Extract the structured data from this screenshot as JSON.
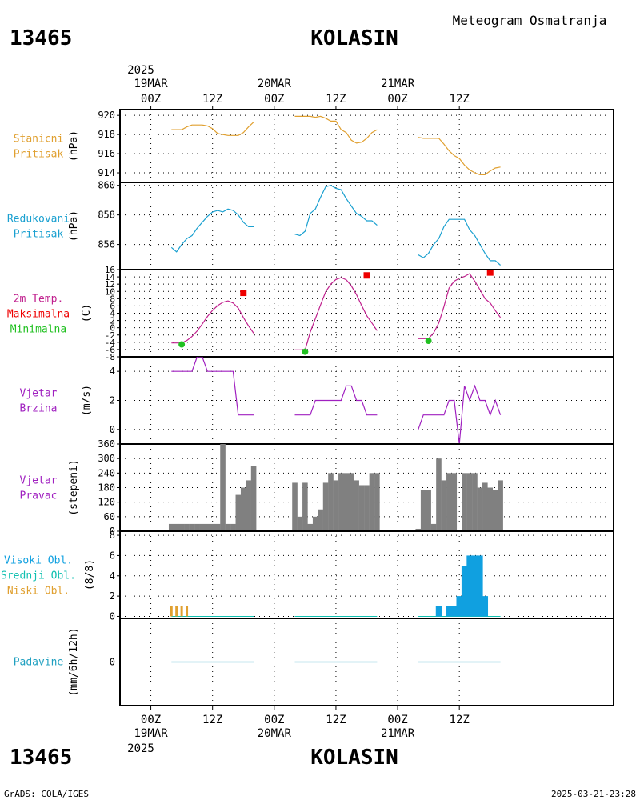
{
  "header": {
    "station_id": "13465",
    "station_name": "KOLASIN",
    "product_title": "Meteogram Osmatranja",
    "year": "2025"
  },
  "footer": {
    "station_id": "13465",
    "station_name": "KOLASIN",
    "credit": "GrADS: COLA/IGES",
    "timestamp": "2025-03-21-23:28"
  },
  "time_axis": {
    "unit": "hours from 2025-03-19 00Z",
    "range": [
      -6,
      90
    ],
    "ticks": [
      {
        "t": 0,
        "label": "00Z",
        "date": "19MAR"
      },
      {
        "t": 12,
        "label": "12Z",
        "date": ""
      },
      {
        "t": 24,
        "label": "00Z",
        "date": "20MAR"
      },
      {
        "t": 36,
        "label": "12Z",
        "date": ""
      },
      {
        "t": 48,
        "label": "00Z",
        "date": "21MAR"
      },
      {
        "t": 60,
        "label": "12Z",
        "date": ""
      }
    ],
    "top_year_label": "2025",
    "bottom_year_label": "2025"
  },
  "colors": {
    "station_pressure": "#e0a030",
    "reduced_pressure": "#1aa0d0",
    "temperature": "#c0208e",
    "temp_max": "#ee0000",
    "temp_min": "#20c020",
    "wind_speed": "#a020c0",
    "wind_dir_bar": "#808080",
    "wind_dir_base": "#c04040",
    "cloud_high": "#10a0e0",
    "cloud_mid": "#10c0b0",
    "cloud_low": "#e0a030",
    "precip": "#20a0c0",
    "grid": "#000000"
  },
  "chart_data": [
    {
      "type": "line",
      "panel": "station-pressure",
      "labels": [
        "Stanicni",
        "Pritisak"
      ],
      "ylabel": "(hPa)",
      "ylim": [
        913,
        920.6
      ],
      "yticks": [
        914,
        916,
        918,
        920
      ],
      "series": [
        {
          "segments": [
            {
              "x": [
                4,
                5,
                6,
                7,
                8,
                9,
                10,
                11,
                12,
                13,
                14,
                15,
                16,
                17,
                18,
                19,
                20
              ],
              "y": [
                918.5,
                918.5,
                918.5,
                918.8,
                919.0,
                919.0,
                919.0,
                918.9,
                918.6,
                918.1,
                918.0,
                917.9,
                917.9,
                917.9,
                918.2,
                918.8,
                919.3
              ]
            },
            {
              "x": [
                28,
                29,
                30,
                31,
                32,
                33,
                34,
                35,
                36,
                37,
                38,
                39,
                40,
                41,
                42,
                43,
                44
              ],
              "y": [
                919.9,
                919.9,
                919.9,
                919.9,
                919.8,
                919.9,
                919.7,
                919.4,
                919.4,
                918.5,
                918.2,
                917.4,
                917.1,
                917.2,
                917.6,
                918.2,
                918.5
              ]
            },
            {
              "x": [
                52,
                53,
                54,
                55,
                56,
                57,
                58,
                59,
                60,
                61,
                62,
                63,
                64,
                65,
                66,
                67,
                68
              ],
              "y": [
                917.7,
                917.6,
                917.6,
                917.6,
                917.6,
                917.0,
                916.3,
                915.8,
                915.5,
                914.8,
                914.3,
                914.0,
                913.8,
                913.8,
                914.2,
                914.5,
                914.6
              ]
            }
          ]
        }
      ]
    },
    {
      "type": "line",
      "panel": "reduced-pressure",
      "labels": [
        "Redukovani",
        "Pritisak"
      ],
      "ylabel": "(hPa)",
      "ylim": [
        854.3,
        860.2
      ],
      "yticks": [
        856,
        858,
        860
      ],
      "series": [
        {
          "segments": [
            {
              "x": [
                4,
                5,
                6,
                7,
                8,
                9,
                10,
                11,
                12,
                13,
                14,
                15,
                16,
                17,
                18,
                19,
                20
              ],
              "y": [
                855.8,
                855.5,
                856.0,
                856.4,
                856.6,
                857.1,
                857.5,
                857.9,
                858.2,
                858.3,
                858.2,
                858.4,
                858.3,
                858.0,
                857.5,
                857.2,
                857.2
              ]
            },
            {
              "x": [
                28,
                29,
                30,
                31,
                32,
                33,
                34,
                35,
                36,
                37,
                38,
                39,
                40,
                41,
                42,
                43,
                44
              ],
              "y": [
                856.7,
                856.6,
                856.9,
                858.1,
                858.4,
                859.2,
                859.9,
                860.0,
                859.8,
                859.7,
                859.1,
                858.6,
                858.1,
                857.9,
                857.6,
                857.6,
                857.3
              ]
            },
            {
              "x": [
                52,
                53,
                54,
                55,
                56,
                57,
                58,
                59,
                60,
                61,
                62,
                63,
                64,
                65,
                66,
                67,
                68
              ],
              "y": [
                855.3,
                855.1,
                855.4,
                856.0,
                856.4,
                857.2,
                857.7,
                857.7,
                857.7,
                857.7,
                857.0,
                856.6,
                856.0,
                855.4,
                854.9,
                854.9,
                854.6
              ]
            }
          ]
        }
      ]
    },
    {
      "type": "line",
      "panel": "temperature",
      "labels": [
        "2m Temp.",
        "Maksimalna",
        "Minimalna"
      ],
      "ylabel": "(C)",
      "ylim": [
        -8,
        16
      ],
      "yticks": [
        -8,
        -6,
        -4,
        -2,
        0,
        2,
        4,
        6,
        8,
        10,
        12,
        14,
        16
      ],
      "series": [
        {
          "name": "2m Temp.",
          "segments": [
            {
              "x": [
                4,
                5,
                6,
                7,
                8,
                9,
                10,
                11,
                12,
                13,
                14,
                15,
                16,
                17,
                18,
                19,
                20
              ],
              "y": [
                -4.2,
                -4.2,
                -4.2,
                -3.5,
                -2.4,
                -0.9,
                1.0,
                3.1,
                4.8,
                6.1,
                7.0,
                7.4,
                6.8,
                5.4,
                2.8,
                0.5,
                -1.5
              ]
            },
            {
              "x": [
                28,
                29,
                30,
                31,
                32,
                33,
                34,
                35,
                36,
                37,
                38,
                39,
                40,
                41,
                42,
                43,
                44
              ],
              "y": [
                -6.1,
                -6.1,
                -6.1,
                -1.2,
                2.5,
                6.3,
                9.9,
                12.0,
                13.3,
                13.8,
                13.2,
                11.5,
                9.1,
                6.1,
                3.3,
                1.3,
                -0.8
              ]
            },
            {
              "x": [
                52,
                53,
                54,
                55,
                56,
                57,
                58,
                59,
                60,
                61,
                62,
                63,
                64,
                65,
                66,
                67,
                68
              ],
              "y": [
                -3.0,
                -3.0,
                -3.0,
                -1.4,
                1.3,
                5.8,
                10.9,
                12.8,
                13.6,
                14.1,
                14.9,
                12.8,
                10.5,
                8.0,
                6.8,
                4.7,
                2.8
              ]
            }
          ]
        },
        {
          "name": "Maksimalna",
          "points": [
            {
              "x": 18,
              "y": 9.6
            },
            {
              "x": 42,
              "y": 14.4
            },
            {
              "x": 66,
              "y": 15.2
            }
          ]
        },
        {
          "name": "Minimalna",
          "points": [
            {
              "x": 6,
              "y": -4.6
            },
            {
              "x": 30,
              "y": -6.6
            },
            {
              "x": 54,
              "y": -3.6
            }
          ]
        }
      ]
    },
    {
      "type": "line",
      "panel": "wind-speed",
      "labels": [
        "Vjetar",
        "Brzina"
      ],
      "ylabel": "(m/s)",
      "ylim": [
        -1,
        5
      ],
      "yticks": [
        0,
        2,
        4
      ],
      "series": [
        {
          "segments": [
            {
              "x": [
                4,
                5,
                6,
                7,
                8,
                9,
                10,
                11,
                12,
                13,
                14,
                15,
                16,
                17,
                18,
                19,
                20
              ],
              "y": [
                4,
                4,
                4,
                4,
                4,
                5,
                5,
                4,
                4,
                4,
                4,
                4,
                4,
                1,
                1,
                1,
                1
              ]
            },
            {
              "x": [
                28,
                29,
                30,
                31,
                32,
                33,
                34,
                35,
                36,
                37,
                38,
                39,
                40,
                41,
                42,
                43,
                44
              ],
              "y": [
                1,
                1,
                1,
                1,
                2,
                2,
                2,
                2,
                2,
                2,
                3,
                3,
                2,
                2,
                1,
                1,
                1
              ]
            },
            {
              "x": [
                52,
                53,
                54,
                55,
                56,
                57,
                58,
                59,
                60,
                61,
                62,
                63,
                64,
                65,
                66,
                67,
                68
              ],
              "y": [
                0,
                1,
                1,
                1,
                1,
                1,
                2,
                2,
                -1,
                3,
                2,
                3,
                2,
                2,
                1,
                2,
                1
              ]
            }
          ]
        }
      ]
    },
    {
      "type": "bar",
      "panel": "wind-direction",
      "labels": [
        "Vjetar",
        "Pravac"
      ],
      "ylabel": "(stepeni)",
      "ylim": [
        0,
        360
      ],
      "yticks": [
        0,
        60,
        120,
        180,
        240,
        300,
        360
      ],
      "series": [
        {
          "x": [
            4,
            5,
            6,
            7,
            8,
            9,
            10,
            11,
            12,
            13,
            14,
            15,
            16,
            17,
            18,
            19,
            20,
            28,
            29,
            30,
            31,
            32,
            33,
            34,
            35,
            36,
            37,
            38,
            39,
            40,
            41,
            42,
            43,
            44,
            52,
            53,
            54,
            55,
            56,
            57,
            58,
            59,
            60,
            61,
            62,
            63,
            64,
            65,
            66,
            67,
            68
          ],
          "values": [
            30,
            30,
            30,
            30,
            30,
            30,
            30,
            30,
            30,
            30,
            360,
            30,
            30,
            150,
            180,
            210,
            270,
            200,
            60,
            200,
            30,
            60,
            90,
            200,
            240,
            210,
            240,
            240,
            240,
            210,
            190,
            190,
            240,
            240,
            10,
            170,
            170,
            30,
            300,
            210,
            240,
            240,
            0,
            240,
            240,
            240,
            180,
            200,
            180,
            170,
            210
          ]
        }
      ]
    },
    {
      "type": "bar",
      "panel": "clouds",
      "labels": [
        "Visoki Obl.",
        "Srednji Obl.",
        "Niski Obl."
      ],
      "ylabel": "(8/8)",
      "ylim": [
        -0.2,
        8.4
      ],
      "yticks": [
        0,
        2,
        4,
        6,
        8
      ],
      "series": [
        {
          "name": "Visoki Obl.",
          "x": [
            56,
            58,
            59,
            60,
            61,
            62,
            63,
            64,
            65
          ],
          "values": [
            1,
            1,
            1,
            2,
            5,
            6,
            6,
            6,
            2
          ]
        },
        {
          "name": "Niski Obl.",
          "x": [
            4,
            5,
            6,
            7
          ],
          "values": [
            1,
            1,
            1,
            1
          ]
        }
      ],
      "zero_segments": [
        [
          4,
          20
        ],
        [
          28,
          44
        ],
        [
          52,
          68
        ]
      ]
    },
    {
      "type": "line",
      "panel": "precipitation",
      "labels": [
        "Padavine"
      ],
      "ylabel": "(mm/6h/12h)",
      "ylim": [
        -1,
        1
      ],
      "yticks": [
        0
      ],
      "series": [
        {
          "segments": [
            {
              "x": [
                4,
                20
              ],
              "y": [
                0,
                0
              ]
            },
            {
              "x": [
                28,
                44
              ],
              "y": [
                0,
                0
              ]
            },
            {
              "x": [
                52,
                68
              ],
              "y": [
                0,
                0
              ]
            }
          ]
        }
      ]
    }
  ]
}
